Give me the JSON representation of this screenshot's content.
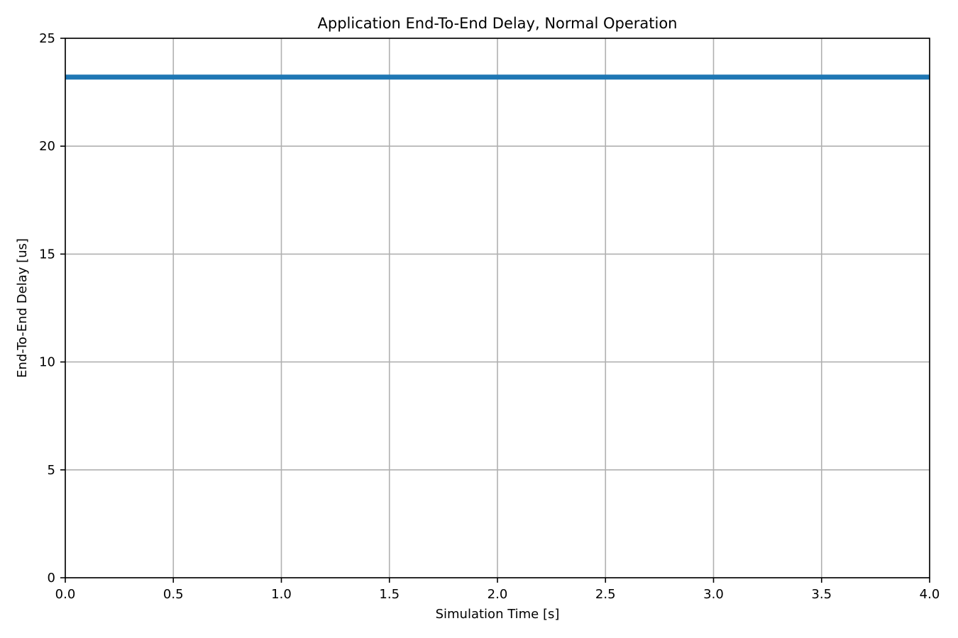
{
  "chart_data": {
    "type": "line",
    "title": "Application End-To-End Delay, Normal Operation",
    "xlabel": "Simulation Time [s]",
    "ylabel": "End-To-End Delay [us]",
    "xlim": [
      0,
      4
    ],
    "ylim": [
      0,
      25
    ],
    "xticks": [
      "0.0",
      "0.5",
      "1.0",
      "1.5",
      "2.0",
      "2.5",
      "3.0",
      "3.5",
      "4.0"
    ],
    "yticks": [
      "0",
      "5",
      "10",
      "15",
      "20",
      "25"
    ],
    "grid": true,
    "series": [
      {
        "color": "#1f77b4",
        "x": [
          0.0,
          4.0
        ],
        "y": [
          23.2,
          23.2
        ]
      }
    ]
  }
}
